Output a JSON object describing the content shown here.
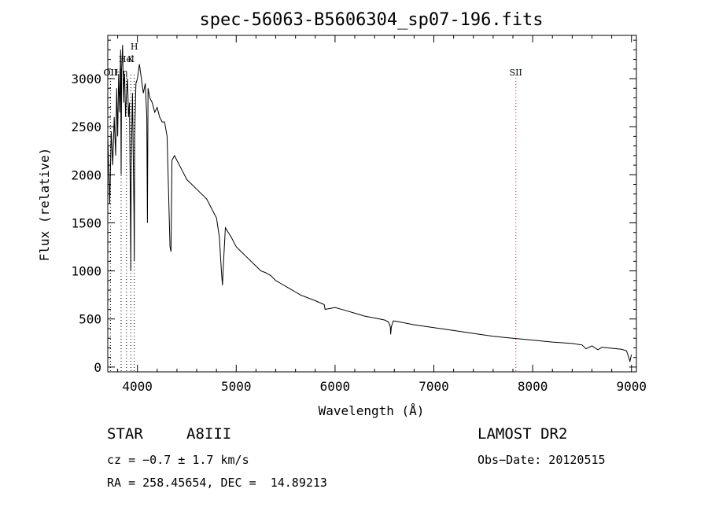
{
  "chart_data": {
    "type": "line",
    "title": "spec-56063-B5606304_sp07-196.fits",
    "xlabel": "Wavelength (Å)",
    "ylabel": "Flux (relative)",
    "xlim": [
      3700,
      9050
    ],
    "ylim": [
      -50,
      3450
    ],
    "xticks": [
      4000,
      5000,
      6000,
      7000,
      8000,
      9000
    ],
    "yticks": [
      0,
      500,
      1000,
      1500,
      2000,
      2500,
      3000
    ],
    "grid": false,
    "series": [
      {
        "line_color": "#000000",
        "x": [
          3700,
          3720,
          3735,
          3750,
          3765,
          3780,
          3790,
          3800,
          3810,
          3820,
          3830,
          3835,
          3840,
          3850,
          3860,
          3865,
          3870,
          3880,
          3890,
          3900,
          3910,
          3920,
          3930,
          3933,
          3937,
          3950,
          3965,
          3968,
          3972,
          3985,
          4000,
          4020,
          4040,
          4060,
          4080,
          4095,
          4101,
          4108,
          4125,
          4150,
          4175,
          4200,
          4225,
          4250,
          4275,
          4300,
          4330,
          4340,
          4350,
          4375,
          4400,
          4450,
          4500,
          4550,
          4600,
          4650,
          4700,
          4750,
          4800,
          4830,
          4850,
          4861,
          4872,
          4890,
          4920,
          4950,
          5000,
          5050,
          5100,
          5150,
          5200,
          5250,
          5300,
          5350,
          5400,
          5450,
          5500,
          5550,
          5600,
          5650,
          5700,
          5800,
          5890,
          5900,
          6000,
          6100,
          6200,
          6300,
          6400,
          6500,
          6540,
          6560,
          6563,
          6570,
          6590,
          6650,
          6800,
          7000,
          7200,
          7400,
          7600,
          7800,
          8000,
          8200,
          8400,
          8500,
          8540,
          8560,
          8600,
          8660,
          8700,
          8800,
          8900,
          8950,
          8985,
          9000
        ],
        "y": [
          2400,
          1700,
          2450,
          2100,
          2600,
          2200,
          2900,
          2400,
          3050,
          2650,
          3300,
          2000,
          3100,
          3350,
          2750,
          3000,
          3050,
          2600,
          2850,
          3000,
          2600,
          2750,
          1500,
          1000,
          2100,
          2850,
          1600,
          1100,
          2400,
          2950,
          3000,
          3150,
          3000,
          2850,
          2950,
          2600,
          1500,
          2900,
          2800,
          2750,
          2650,
          2700,
          2600,
          2550,
          2550,
          2400,
          1250,
          1200,
          2150,
          2200,
          2150,
          2050,
          1950,
          1900,
          1850,
          1800,
          1750,
          1650,
          1550,
          1350,
          1000,
          850,
          1100,
          1450,
          1400,
          1350,
          1250,
          1200,
          1150,
          1100,
          1050,
          1000,
          980,
          950,
          900,
          870,
          840,
          810,
          780,
          750,
          730,
          690,
          650,
          600,
          620,
          590,
          560,
          530,
          510,
          490,
          470,
          420,
          340,
          420,
          480,
          470,
          440,
          410,
          380,
          350,
          320,
          300,
          280,
          260,
          245,
          230,
          190,
          200,
          220,
          180,
          205,
          195,
          185,
          170,
          60,
          130
        ]
      }
    ],
    "line_markers": [
      {
        "label": "H",
        "x": 3968,
        "line_color": "#000000"
      },
      {
        "label": "K",
        "x": 3933,
        "line_color": "#000000"
      },
      {
        "label": "OII",
        "x": 3727,
        "line_color": "#000000"
      },
      {
        "label": "Hel",
        "x": 3889,
        "line_color": "#000000"
      },
      {
        "label": "OII",
        "x": 3727,
        "line_color": "#000000"
      },
      {
        "label": "Hη",
        "x": 3835,
        "line_color": "#000000"
      },
      {
        "label": "SII",
        "x": 7830,
        "line_color": "#ff0000"
      }
    ]
  },
  "info": {
    "class": "STAR",
    "subclass": "A8III",
    "survey": "LAMOST DR2",
    "cz": "cz = −0.7 ± 1.7 km/s",
    "obs_date": "Obs−Date: 20120515",
    "coords": "RA = 258.45654, DEC =  14.89213"
  }
}
